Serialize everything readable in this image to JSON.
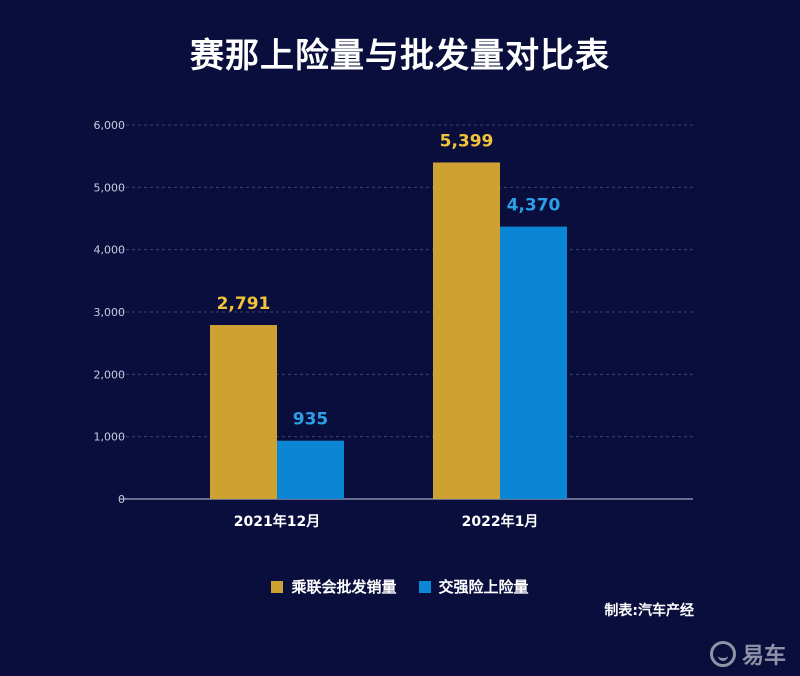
{
  "title": "赛那上险量与批发量对比表",
  "legend": [
    {
      "label": "乘联会批发销量",
      "color": "#cea232"
    },
    {
      "label": "交强险上险量",
      "color": "#0a86d4"
    }
  ],
  "source": "制表:汽车产经",
  "watermark": "易车",
  "chart_data": {
    "type": "bar",
    "categories": [
      "2021年12月",
      "2022年1月"
    ],
    "series": [
      {
        "name": "乘联会批发销量",
        "values": [
          2791,
          5399
        ],
        "labels": [
          "2,791",
          "5,399"
        ],
        "color": "#cea232",
        "label_color": "#f2c33a"
      },
      {
        "name": "交强险上险量",
        "values": [
          935,
          4370
        ],
        "labels": [
          "935",
          "4,370"
        ],
        "color": "#0a86d4",
        "label_color": "#2e9ee6"
      }
    ],
    "yticks": [
      0,
      1000,
      2000,
      3000,
      4000,
      5000,
      6000
    ],
    "ytick_labels": [
      "0",
      "1,000",
      "2,000",
      "3,000",
      "4,000",
      "5,000",
      "6,000"
    ],
    "ylim": [
      0,
      6000
    ],
    "grid": true,
    "legend_position": "bottom"
  }
}
